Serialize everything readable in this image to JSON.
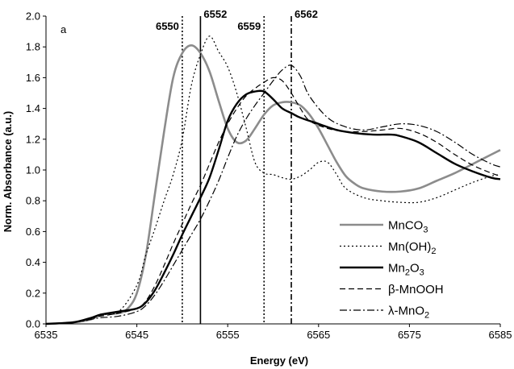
{
  "chart_data": {
    "type": "line",
    "panel_label": "a",
    "xlabel": "Energy (eV)",
    "ylabel": "Norm. Absorbance (a.u.)",
    "xlim": [
      6535,
      6585
    ],
    "ylim": [
      0.0,
      2.0
    ],
    "x_ticks": [
      "6535",
      "6545",
      "6555",
      "6565",
      "6575",
      "6585"
    ],
    "y_ticks": [
      "0.0",
      "0.2",
      "0.4",
      "0.6",
      "0.8",
      "1.0",
      "1.2",
      "1.4",
      "1.6",
      "1.8",
      "2.0"
    ],
    "grid": false,
    "legend_position": "bottom-right",
    "reference_lines": [
      {
        "x": 6550,
        "label": "6550",
        "style": "dotted"
      },
      {
        "x": 6552,
        "label": "6552",
        "style": "solid"
      },
      {
        "x": 6559,
        "label": "6559",
        "style": "dotted"
      },
      {
        "x": 6562,
        "label": "6562",
        "style": "dashdot"
      }
    ],
    "series": [
      {
        "name": "MnCO",
        "name_sub": "3",
        "name_suffix": "",
        "color": "#8c8c8c",
        "width": 2.6,
        "dash": "",
        "points": [
          [
            6535,
            0.0
          ],
          [
            6538,
            0.01
          ],
          [
            6540,
            0.03
          ],
          [
            6541,
            0.06
          ],
          [
            6543,
            0.07
          ],
          [
            6544,
            0.1
          ],
          [
            6545,
            0.2
          ],
          [
            6546,
            0.45
          ],
          [
            6547,
            0.85
          ],
          [
            6548,
            1.25
          ],
          [
            6549,
            1.6
          ],
          [
            6550,
            1.76
          ],
          [
            6551,
            1.81
          ],
          [
            6552,
            1.76
          ],
          [
            6553,
            1.64
          ],
          [
            6554,
            1.45
          ],
          [
            6555,
            1.27
          ],
          [
            6556,
            1.18
          ],
          [
            6557,
            1.19
          ],
          [
            6558,
            1.27
          ],
          [
            6559,
            1.36
          ],
          [
            6560,
            1.42
          ],
          [
            6561,
            1.44
          ],
          [
            6562,
            1.44
          ],
          [
            6563,
            1.42
          ],
          [
            6564,
            1.36
          ],
          [
            6565,
            1.27
          ],
          [
            6566,
            1.16
          ],
          [
            6567,
            1.05
          ],
          [
            6568,
            0.96
          ],
          [
            6569,
            0.91
          ],
          [
            6570,
            0.88
          ],
          [
            6572,
            0.86
          ],
          [
            6574,
            0.86
          ],
          [
            6576,
            0.88
          ],
          [
            6578,
            0.93
          ],
          [
            6580,
            0.98
          ],
          [
            6582,
            1.04
          ],
          [
            6584,
            1.1
          ],
          [
            6585,
            1.13
          ]
        ]
      },
      {
        "name": "Mn(OH)",
        "name_sub": "2",
        "name_suffix": "",
        "color": "#000000",
        "width": 1.2,
        "dash": "2,3",
        "points": [
          [
            6535,
            0.0
          ],
          [
            6538,
            0.01
          ],
          [
            6540,
            0.03
          ],
          [
            6541,
            0.06
          ],
          [
            6543,
            0.08
          ],
          [
            6545,
            0.25
          ],
          [
            6546,
            0.45
          ],
          [
            6547,
            0.62
          ],
          [
            6548,
            0.8
          ],
          [
            6549,
            0.97
          ],
          [
            6550,
            1.2
          ],
          [
            6551,
            1.55
          ],
          [
            6552,
            1.75
          ],
          [
            6553,
            1.87
          ],
          [
            6554,
            1.77
          ],
          [
            6555,
            1.67
          ],
          [
            6556,
            1.5
          ],
          [
            6557,
            1.28
          ],
          [
            6558,
            1.05
          ],
          [
            6559,
            0.98
          ],
          [
            6560,
            0.97
          ],
          [
            6561,
            0.95
          ],
          [
            6562,
            0.94
          ],
          [
            6563,
            0.96
          ],
          [
            6564,
            1.0
          ],
          [
            6565,
            1.05
          ],
          [
            6566,
            1.05
          ],
          [
            6567,
            0.97
          ],
          [
            6568,
            0.88
          ],
          [
            6570,
            0.82
          ],
          [
            6572,
            0.8
          ],
          [
            6574,
            0.79
          ],
          [
            6576,
            0.79
          ],
          [
            6578,
            0.82
          ],
          [
            6580,
            0.87
          ],
          [
            6582,
            0.92
          ],
          [
            6584,
            0.96
          ],
          [
            6585,
            0.97
          ]
        ]
      },
      {
        "name": "Mn",
        "name_sub": "2",
        "name_suffix": "O3",
        "color": "#000000",
        "width": 2.4,
        "dash": "",
        "points": [
          [
            6535,
            0.0
          ],
          [
            6538,
            0.01
          ],
          [
            6540,
            0.04
          ],
          [
            6541,
            0.06
          ],
          [
            6543,
            0.08
          ],
          [
            6545,
            0.1
          ],
          [
            6546,
            0.14
          ],
          [
            6547,
            0.22
          ],
          [
            6548,
            0.33
          ],
          [
            6549,
            0.45
          ],
          [
            6550,
            0.58
          ],
          [
            6551,
            0.7
          ],
          [
            6552,
            0.82
          ],
          [
            6553,
            0.95
          ],
          [
            6554,
            1.13
          ],
          [
            6555,
            1.32
          ],
          [
            6556,
            1.43
          ],
          [
            6557,
            1.49
          ],
          [
            6558,
            1.51
          ],
          [
            6559,
            1.51
          ],
          [
            6560,
            1.46
          ],
          [
            6561,
            1.4
          ],
          [
            6562,
            1.37
          ],
          [
            6563,
            1.34
          ],
          [
            6565,
            1.3
          ],
          [
            6567,
            1.26
          ],
          [
            6569,
            1.24
          ],
          [
            6571,
            1.23
          ],
          [
            6573,
            1.23
          ],
          [
            6574,
            1.22
          ],
          [
            6576,
            1.18
          ],
          [
            6578,
            1.11
          ],
          [
            6580,
            1.04
          ],
          [
            6582,
            0.99
          ],
          [
            6584,
            0.95
          ],
          [
            6585,
            0.94
          ]
        ]
      },
      {
        "name": "β-MnOOH",
        "name_sub": "",
        "name_suffix": "",
        "color": "#000000",
        "width": 1.2,
        "dash": "7,4",
        "points": [
          [
            6535,
            0.0
          ],
          [
            6538,
            0.01
          ],
          [
            6540,
            0.04
          ],
          [
            6541,
            0.05
          ],
          [
            6543,
            0.07
          ],
          [
            6545,
            0.1
          ],
          [
            6546,
            0.15
          ],
          [
            6547,
            0.25
          ],
          [
            6548,
            0.38
          ],
          [
            6549,
            0.52
          ],
          [
            6550,
            0.65
          ],
          [
            6551,
            0.78
          ],
          [
            6552,
            0.9
          ],
          [
            6553,
            1.04
          ],
          [
            6554,
            1.18
          ],
          [
            6555,
            1.3
          ],
          [
            6556,
            1.4
          ],
          [
            6557,
            1.48
          ],
          [
            6558,
            1.53
          ],
          [
            6559,
            1.57
          ],
          [
            6560,
            1.6
          ],
          [
            6561,
            1.58
          ],
          [
            6562,
            1.5
          ],
          [
            6563,
            1.4
          ],
          [
            6564,
            1.32
          ],
          [
            6566,
            1.27
          ],
          [
            6568,
            1.25
          ],
          [
            6570,
            1.25
          ],
          [
            6572,
            1.26
          ],
          [
            6574,
            1.27
          ],
          [
            6576,
            1.24
          ],
          [
            6578,
            1.18
          ],
          [
            6580,
            1.1
          ],
          [
            6582,
            1.03
          ],
          [
            6584,
            0.98
          ],
          [
            6585,
            0.96
          ]
        ]
      },
      {
        "name": "λ-MnO",
        "name_sub": "2",
        "name_suffix": "",
        "color": "#000000",
        "width": 1.2,
        "dash": "9,3,2,3",
        "points": [
          [
            6535,
            0.0
          ],
          [
            6538,
            0.01
          ],
          [
            6540,
            0.03
          ],
          [
            6541,
            0.04
          ],
          [
            6543,
            0.05
          ],
          [
            6545,
            0.08
          ],
          [
            6546,
            0.12
          ],
          [
            6547,
            0.19
          ],
          [
            6548,
            0.28
          ],
          [
            6549,
            0.38
          ],
          [
            6550,
            0.48
          ],
          [
            6551,
            0.58
          ],
          [
            6552,
            0.68
          ],
          [
            6553,
            0.8
          ],
          [
            6554,
            0.93
          ],
          [
            6555,
            1.08
          ],
          [
            6556,
            1.22
          ],
          [
            6557,
            1.33
          ],
          [
            6558,
            1.42
          ],
          [
            6559,
            1.5
          ],
          [
            6560,
            1.58
          ],
          [
            6561,
            1.65
          ],
          [
            6562,
            1.68
          ],
          [
            6563,
            1.61
          ],
          [
            6564,
            1.48
          ],
          [
            6566,
            1.34
          ],
          [
            6568,
            1.28
          ],
          [
            6570,
            1.26
          ],
          [
            6572,
            1.28
          ],
          [
            6574,
            1.3
          ],
          [
            6576,
            1.29
          ],
          [
            6578,
            1.25
          ],
          [
            6580,
            1.18
          ],
          [
            6582,
            1.1
          ],
          [
            6584,
            1.04
          ],
          [
            6585,
            1.02
          ]
        ]
      }
    ]
  }
}
